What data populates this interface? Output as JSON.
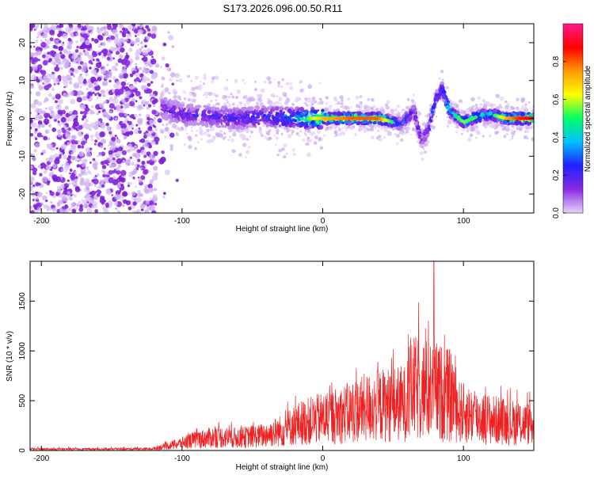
{
  "title": "S173.2026.096.00.50.R11",
  "chart_data": [
    {
      "type": "heatmap",
      "title": "S173.2026.096.00.50.R11",
      "xlabel": "Height of straight line (km)",
      "ylabel": "Frequency (Hz)",
      "xlim": [
        -208,
        150
      ],
      "ylim": [
        -25,
        25
      ],
      "x_ticks": [
        "-200",
        "-100",
        "0",
        "100"
      ],
      "y_ticks": [
        "-20",
        "-10",
        "0",
        "10",
        "20"
      ],
      "x_tick_values": [
        -200,
        -100,
        0,
        100
      ],
      "y_tick_values": [
        -20,
        -10,
        0,
        10,
        20
      ],
      "colorbar": {
        "label": "Normalized spectral amplitude",
        "range": [
          0,
          1
        ],
        "ticks": [
          "0.0",
          "0.2",
          "0.4",
          "0.6",
          "0.8"
        ],
        "tick_values": [
          0.0,
          0.2,
          0.4,
          0.6,
          0.8
        ],
        "colors": [
          "#e6d6f7",
          "#8a2be2",
          "#2020ff",
          "#00c0ff",
          "#00ff66",
          "#ffff00",
          "#ff9900",
          "#ff0000",
          "#ff1a8c"
        ]
      },
      "noise_region_x": [
        -208,
        -118
      ],
      "ridge": {
        "x": [
          -115,
          -100,
          -80,
          -60,
          -40,
          -20,
          0,
          20,
          40,
          55,
          65,
          70,
          75,
          80,
          85,
          90,
          100,
          110,
          120,
          130,
          140,
          150
        ],
        "frequency": [
          3,
          1,
          0.5,
          0,
          0.5,
          0,
          0,
          0,
          0,
          -1.5,
          2,
          -6,
          -3,
          5,
          8,
          2,
          -1,
          0.5,
          1,
          0,
          0,
          0
        ],
        "amplitude": [
          0.15,
          0.2,
          0.2,
          0.22,
          0.25,
          0.4,
          0.7,
          0.8,
          0.8,
          0.3,
          0.25,
          0.2,
          0.25,
          0.3,
          0.3,
          0.45,
          0.55,
          0.5,
          0.45,
          0.7,
          0.85,
          0.9
        ]
      },
      "grid": false
    },
    {
      "type": "line",
      "xlabel": "Height of straight line (km)",
      "ylabel": "SNR (10 * v/v)",
      "xlim": [
        -208,
        150
      ],
      "ylim": [
        0,
        1900
      ],
      "x_ticks": [
        "-200",
        "-100",
        "0",
        "100"
      ],
      "y_ticks": [
        "0",
        "500",
        "1000",
        "1500"
      ],
      "x_tick_values": [
        -200,
        -100,
        0,
        100
      ],
      "y_tick_values": [
        0,
        500,
        1000,
        1500
      ],
      "color": "#ee2222",
      "envelope": {
        "x": [
          -208,
          -150,
          -120,
          -105,
          -90,
          -75,
          -60,
          -45,
          -30,
          -15,
          0,
          15,
          30,
          45,
          60,
          70,
          80,
          90,
          100,
          115,
          130,
          150
        ],
        "y": [
          20,
          20,
          25,
          70,
          130,
          160,
          150,
          170,
          230,
          330,
          380,
          430,
          500,
          540,
          560,
          560,
          540,
          500,
          440,
          380,
          340,
          310
        ]
      },
      "spike": {
        "x": 79,
        "y": 1900
      },
      "grid": false
    }
  ]
}
